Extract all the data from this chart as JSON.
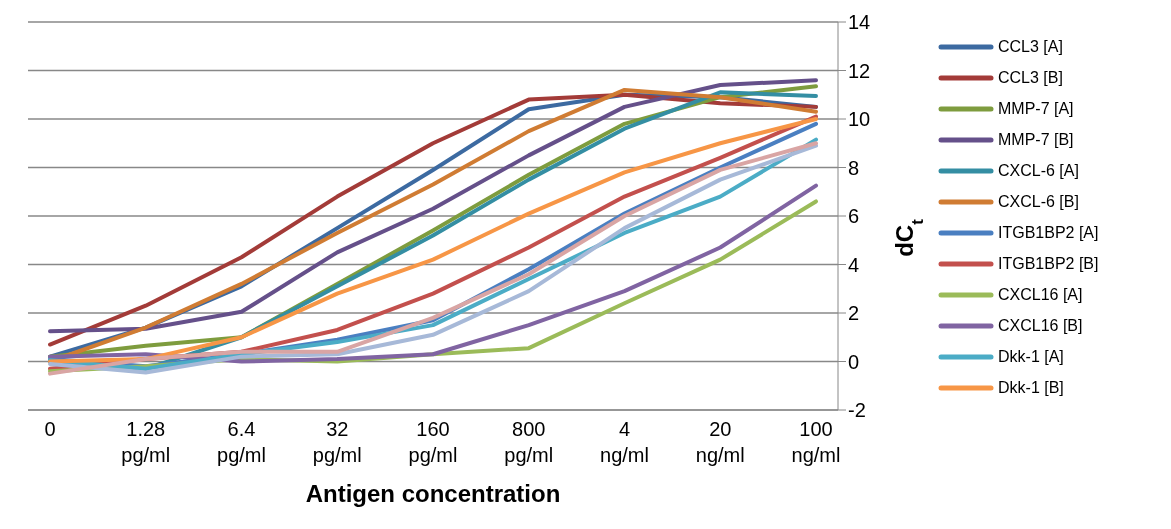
{
  "chart_data": {
    "type": "line",
    "xlabel": "Antigen concentration",
    "ylabel": "dC$_{t}$",
    "categories": [
      "0",
      "1.28 pg/ml",
      "6.4 pg/ml",
      "32 pg/ml",
      "160 pg/ml",
      "800 pg/ml",
      "4 ng/ml",
      "20 ng/ml",
      "100 ng/ml"
    ],
    "ylim": [
      -2,
      14
    ],
    "yticks": [
      -2,
      0,
      2,
      4,
      6,
      8,
      10,
      12,
      14
    ],
    "grid": "y",
    "legend": "right",
    "marker": "none",
    "line_style": "solid",
    "series": [
      {
        "name": "CCL3 [A]",
        "color": "#3c6aa1",
        "values": [
          0.2,
          1.4,
          3.1,
          5.5,
          7.9,
          10.4,
          11.0,
          10.9,
          10.5
        ]
      },
      {
        "name": "CCL3 [B]",
        "color": "#a33b38",
        "values": [
          0.7,
          2.3,
          4.3,
          6.8,
          9.0,
          10.8,
          11.0,
          10.65,
          10.5
        ]
      },
      {
        "name": "MMP-7 [A]",
        "color": "#7e9c3e",
        "values": [
          0.2,
          0.65,
          1.0,
          3.2,
          5.4,
          7.7,
          9.8,
          10.9,
          11.35
        ]
      },
      {
        "name": "MMP-7 [B]",
        "color": "#65508a",
        "values": [
          1.25,
          1.35,
          2.05,
          4.5,
          6.3,
          8.5,
          10.5,
          11.4,
          11.6
        ]
      },
      {
        "name": "CXCL-6 [A]",
        "color": "#348ea3",
        "values": [
          0.0,
          -0.3,
          1.0,
          3.1,
          5.2,
          7.5,
          9.6,
          11.1,
          10.95
        ]
      },
      {
        "name": "CXCL-6 [B]",
        "color": "#d07c33",
        "values": [
          0.0,
          1.4,
          3.2,
          5.3,
          7.3,
          9.5,
          11.2,
          10.9,
          10.3
        ]
      },
      {
        "name": "ITGB1BP2 [A]",
        "color": "#4a7fc1",
        "values": [
          0.1,
          -0.2,
          0.3,
          0.9,
          1.7,
          3.8,
          6.1,
          8.0,
          9.8
        ]
      },
      {
        "name": "ITGB1BP2 [B]",
        "color": "#c3504d",
        "values": [
          -0.3,
          0.1,
          0.4,
          1.3,
          2.8,
          4.7,
          6.8,
          8.4,
          10.1
        ]
      },
      {
        "name": "CXCL16 [A]",
        "color": "#9bbb59",
        "values": [
          -0.4,
          -0.2,
          0.1,
          0.0,
          0.3,
          0.55,
          2.4,
          4.2,
          6.6
        ]
      },
      {
        "name": "CXCL16 [B]",
        "color": "#8064a2",
        "values": [
          0.2,
          0.3,
          0.0,
          0.1,
          0.3,
          1.5,
          2.9,
          4.7,
          7.25
        ]
      },
      {
        "name": "Dkk-1 [A]",
        "color": "#4bacc6",
        "values": [
          0.05,
          -0.3,
          0.3,
          0.8,
          1.5,
          3.4,
          5.3,
          6.8,
          9.15
        ]
      },
      {
        "name": "Dkk-1 [B]",
        "color": "#f79646",
        "values": [
          0.0,
          0.1,
          1.0,
          2.8,
          4.2,
          6.1,
          7.8,
          9.0,
          10.0
        ]
      },
      {
        "color": "#a7b9d8",
        "values": [
          -0.1,
          -0.45,
          0.2,
          0.3,
          1.1,
          2.9,
          5.5,
          7.5,
          8.9
        ]
      },
      {
        "color": "#d9a5a4",
        "values": [
          -0.5,
          0.1,
          0.4,
          0.4,
          1.8,
          3.6,
          6.0,
          7.9,
          9.0
        ]
      }
    ]
  }
}
